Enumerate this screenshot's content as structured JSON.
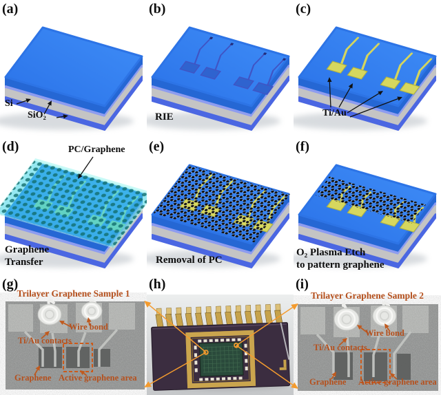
{
  "panels": {
    "a": {
      "tag": "(a)",
      "label_si": "Si",
      "label_sio2": "SiO₂"
    },
    "b": {
      "tag": "(b)",
      "caption": "RIE"
    },
    "c": {
      "tag": "(c)",
      "label_tiau": "Ti/Au"
    },
    "d": {
      "tag": "(d)",
      "label_pc": "PC/Graphene",
      "caption_line1": "Graphene",
      "caption_line2": "Transfer"
    },
    "e": {
      "tag": "(e)",
      "caption": "Removal of PC"
    },
    "f": {
      "tag": "(f)",
      "caption_line1": "O₂ Plasma Etch",
      "caption_line2": "to pattern graphene"
    },
    "g": {
      "tag": "(g)",
      "title": "Trilayer Graphene Sample 1",
      "label_wire_bond": "Wire bond",
      "label_contacts": "Ti/Au contacts",
      "label_graphene": "Graphene",
      "label_active": "Active graphene area"
    },
    "h": {
      "tag": "(h)"
    },
    "i": {
      "tag": "(i)",
      "title": "Trilayer Graphene Sample 2",
      "label_wire_bond": "Wire bond",
      "label_contacts": "Ti/Au contacts",
      "label_graphene": "Graphene",
      "label_active": "Active graphene area"
    }
  },
  "colors": {
    "substrate_blue_light": "#3f8df7",
    "substrate_blue": "#2a72e8",
    "side_blue": "#2567d4",
    "oxide_violet": "#8d9cf0",
    "silicon_gray": "#c4c4c4",
    "bottom_blue": "#4b67e2",
    "trench_blue": "#2f63cf",
    "trench_line": "#4054c4",
    "gold_pad": "#d6d75e",
    "gold_trace": "#d4d55e",
    "pc_cyan": "#3fd6e6",
    "graphene_dot_teal": "#116e6e",
    "lattice_atom": "#121212",
    "lattice_bond": "#f5f5f5",
    "micrograph_gray": "#8e908f",
    "micrograph_pad": "#b3b5b2",
    "micrograph_dark": "#5e605f",
    "annotation": "#b5501d",
    "annotation_arrow": "#c05a1e",
    "dash_orange": "#cc5a1a",
    "arrow_orange": "#f49b2e",
    "package_body": "#3b2d40",
    "package_gold": "#c6a24b",
    "chip_green": "#2a4a3b",
    "photo_bg": "#d7d9da"
  }
}
